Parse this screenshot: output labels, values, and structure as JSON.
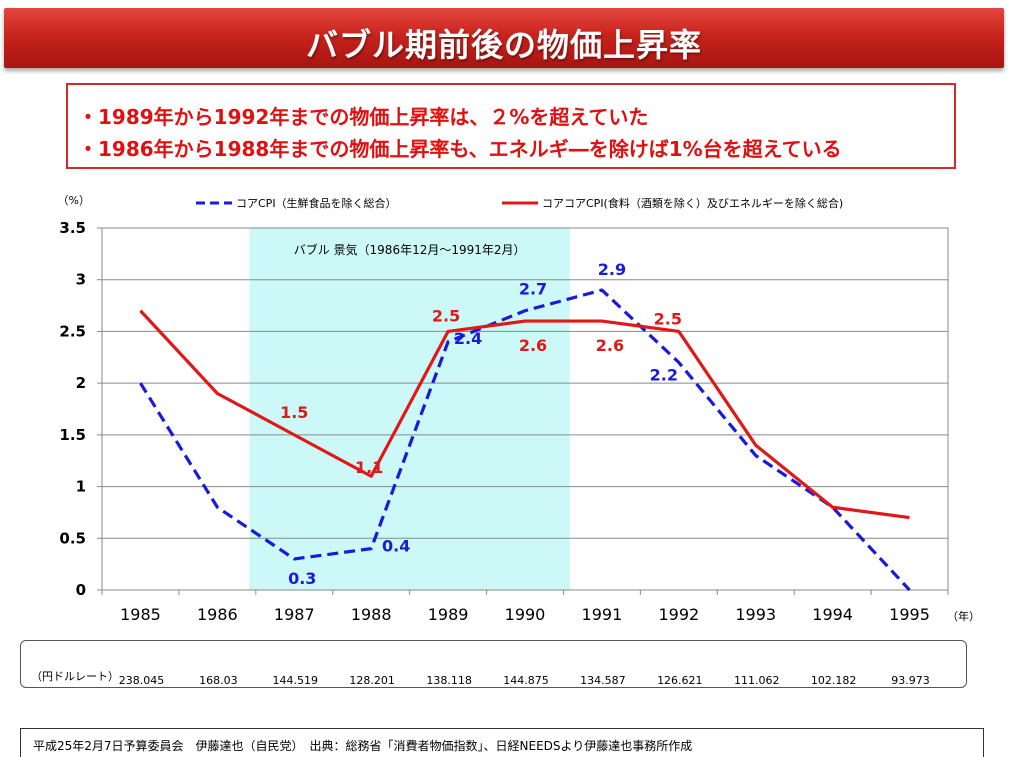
{
  "title": "バブル期前後の物価上昇率",
  "notes": [
    "・1989年から1992年までの物価上昇率は、２%を超えていた",
    "・1986年から1988年までの物価上昇率も、エネルギ―を除けば1%台を超えている"
  ],
  "chart_data": {
    "type": "line",
    "ylabel": "（%）",
    "xunit": "（年）",
    "categories": [
      "1985",
      "1986",
      "1987",
      "1988",
      "1989",
      "1990",
      "1991",
      "1992",
      "1993",
      "1994",
      "1995"
    ],
    "ylim": [
      0,
      3.5
    ],
    "yticks": [
      "0",
      "0.5",
      "1",
      "1.5",
      "2",
      "2.5",
      "3",
      "3.5"
    ],
    "grid": true,
    "legend_position": "top",
    "shaded_region": {
      "label": "バブル 景気（1986年12月～1991年2月）",
      "from": "1986-12",
      "to": "1991-02",
      "color": "#ccf8f8"
    },
    "series": [
      {
        "name": "コアCPI（生鮮食品を除く総合）",
        "style": "dashed",
        "color": "#1a1adc",
        "values": [
          2.0,
          0.8,
          0.3,
          0.4,
          2.4,
          2.7,
          2.9,
          2.2,
          1.3,
          0.8,
          0.0
        ]
      },
      {
        "name": "コアコアCPI(食料（酒類を除く）及びエネルギーを除く総合)",
        "style": "solid",
        "color": "#e01818",
        "values": [
          2.7,
          1.9,
          1.5,
          1.1,
          2.5,
          2.6,
          2.6,
          2.5,
          1.4,
          0.8,
          0.7
        ]
      }
    ],
    "data_labels": [
      {
        "series": 0,
        "index": 2,
        "text": "0.3"
      },
      {
        "series": 0,
        "index": 3,
        "text": "0.4"
      },
      {
        "series": 0,
        "index": 4,
        "text": "2.4"
      },
      {
        "series": 0,
        "index": 5,
        "text": "2.7"
      },
      {
        "series": 0,
        "index": 6,
        "text": "2.9"
      },
      {
        "series": 0,
        "index": 7,
        "text": "2.2"
      },
      {
        "series": 1,
        "index": 2,
        "text": "1.5"
      },
      {
        "series": 1,
        "index": 3,
        "text": "1.1"
      },
      {
        "series": 1,
        "index": 4,
        "text": "2.5"
      },
      {
        "series": 1,
        "index": 5,
        "text": "2.6"
      },
      {
        "series": 1,
        "index": 6,
        "text": "2.6"
      },
      {
        "series": 1,
        "index": 7,
        "text": "2.5"
      }
    ]
  },
  "exchange_rate": {
    "label": "（円ドルレート）",
    "values": [
      "238.045",
      "168.03",
      "144.519",
      "128.201",
      "138.118",
      "144.875",
      "134.587",
      "126.621",
      "111.062",
      "102.182",
      "93.973"
    ]
  },
  "footer": "平成25年2月7日予算委員会　伊藤達也（自民党）　出典：総務省「消費者物価指数」、日経NEEDSより伊藤達也事務所作成"
}
